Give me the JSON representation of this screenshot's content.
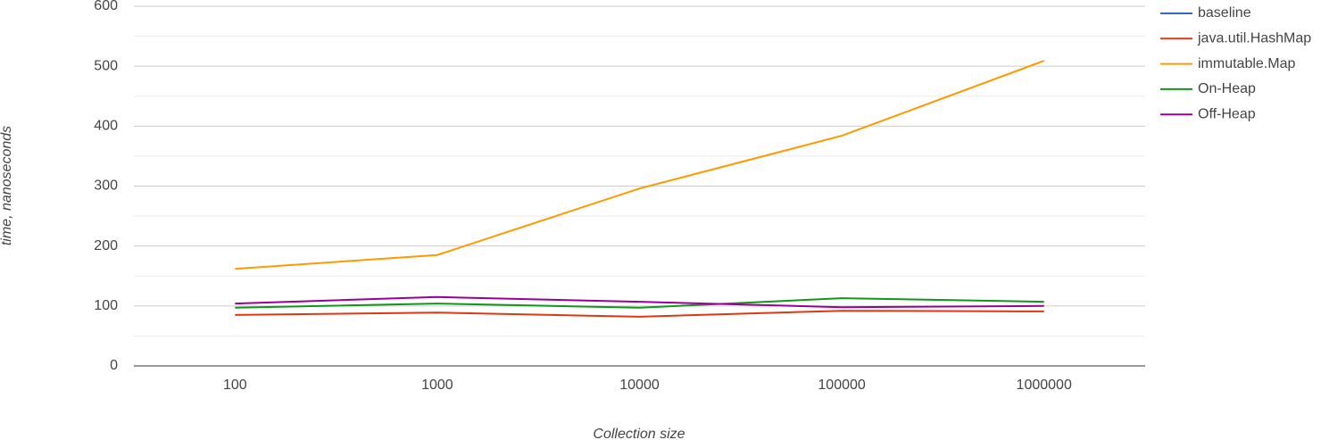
{
  "chart_data": {
    "type": "line",
    "x_label": "Collection size",
    "y_label": "time, nanoseconds",
    "categories": [
      "100",
      "1000",
      "10000",
      "100000",
      "1000000"
    ],
    "series": [
      {
        "name": "baseline",
        "color": "#3366cc",
        "values": [
          null,
          null,
          null,
          null,
          null
        ]
      },
      {
        "name": "java.util.HashMap",
        "color": "#dc3912",
        "values": [
          85,
          89,
          82,
          92,
          91
        ]
      },
      {
        "name": "immutable.Map",
        "color": "#ff9900",
        "values": [
          162,
          185,
          296,
          384,
          509
        ]
      },
      {
        "name": "On-Heap",
        "color": "#109618",
        "values": [
          97,
          104,
          97,
          113,
          107
        ]
      },
      {
        "name": "Off-Heap",
        "color": "#990099",
        "values": [
          104,
          115,
          107,
          98,
          100
        ]
      }
    ],
    "ylim": [
      0,
      600
    ],
    "yticks": [
      0,
      100,
      200,
      300,
      400,
      500,
      600
    ],
    "minor_yticks": [
      50,
      150,
      250,
      350,
      450,
      550
    ],
    "grid": true,
    "legend": "right"
  }
}
